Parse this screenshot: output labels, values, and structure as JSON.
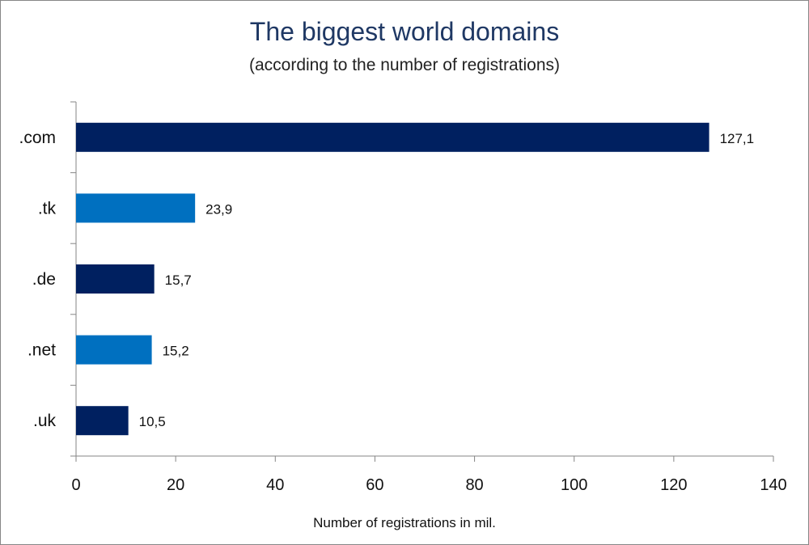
{
  "chart_data": {
    "type": "bar",
    "orientation": "horizontal",
    "title": "The biggest world domains",
    "subtitle": "(according to the number of registrations)",
    "xlabel": "Number of registrations in mil.",
    "ylabel": "",
    "categories": [
      ".com",
      ".tk",
      ".de",
      ".net",
      ".uk"
    ],
    "values": [
      127.1,
      23.9,
      15.7,
      15.2,
      10.5
    ],
    "value_labels": [
      "127,1",
      "23,9",
      "15,7",
      "15,2",
      "10,5"
    ],
    "bar_colors": [
      "#002060",
      "#0070c0",
      "#002060",
      "#0070c0",
      "#002060"
    ],
    "xlim": [
      0,
      140
    ],
    "xticks": [
      0,
      20,
      40,
      60,
      80,
      100,
      120,
      140
    ],
    "xtick_labels": [
      "0",
      "20",
      "40",
      "60",
      "80",
      "100",
      "120",
      "140"
    ],
    "grid": false,
    "legend": "none"
  }
}
